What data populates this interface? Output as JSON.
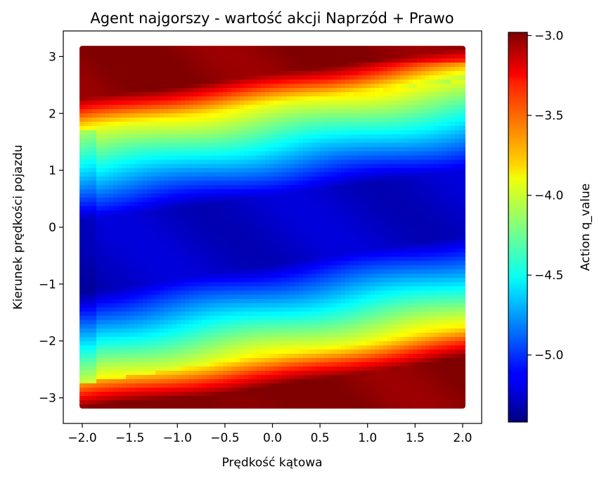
{
  "chart_data": {
    "type": "heatmap",
    "title": "Agent najgorszy - wartość akcji Naprzód + Prawo",
    "xlabel": "Prędkość kątowa",
    "ylabel": "Kierunek prędkości pojazdu",
    "xlim": [
      -2.2,
      2.2
    ],
    "ylim": [
      -3.45,
      3.45
    ],
    "data_extent": {
      "x": [
        -2.0,
        2.0
      ],
      "y": [
        -3.14,
        3.14
      ]
    },
    "xticks": [
      "−2.0",
      "−1.5",
      "−1.0",
      "−0.5",
      "0.0",
      "0.5",
      "1.0",
      "1.5",
      "2.0"
    ],
    "xtick_values": [
      -2.0,
      -1.5,
      -1.0,
      -0.5,
      0.0,
      0.5,
      1.0,
      1.5,
      2.0
    ],
    "yticks": [
      "3",
      "2",
      "1",
      "0",
      "−1",
      "−2",
      "−3"
    ],
    "ytick_values": [
      3,
      2,
      1,
      0,
      -1,
      -2,
      -3
    ],
    "grid": false,
    "colormap": "jet",
    "colorbar": {
      "label": "Action q_value",
      "range": [
        -5.42,
        -2.98
      ],
      "ticks": [
        "−3.0",
        "−3.5",
        "−4.0",
        "−4.5",
        "−5.0"
      ],
      "tick_values": [
        -3.0,
        -3.5,
        -4.0,
        -4.5,
        -5.0
      ]
    },
    "value_profile_by_y": [
      {
        "y": 3.1,
        "q": -3.1
      },
      {
        "y": 2.8,
        "q": -3.05
      },
      {
        "y": 2.5,
        "q": -3.2
      },
      {
        "y": 2.2,
        "q": -3.6
      },
      {
        "y": 2.0,
        "q": -4.1
      },
      {
        "y": 1.6,
        "q": -4.55
      },
      {
        "y": 1.0,
        "q": -4.9
      },
      {
        "y": 0.0,
        "q": -5.25
      },
      {
        "y": -1.0,
        "q": -4.95
      },
      {
        "y": -1.6,
        "q": -4.5
      },
      {
        "y": -2.0,
        "q": -4.0
      },
      {
        "y": -2.4,
        "q": -3.5
      },
      {
        "y": -2.8,
        "q": -3.1
      },
      {
        "y": -3.1,
        "q": -3.2
      }
    ]
  }
}
